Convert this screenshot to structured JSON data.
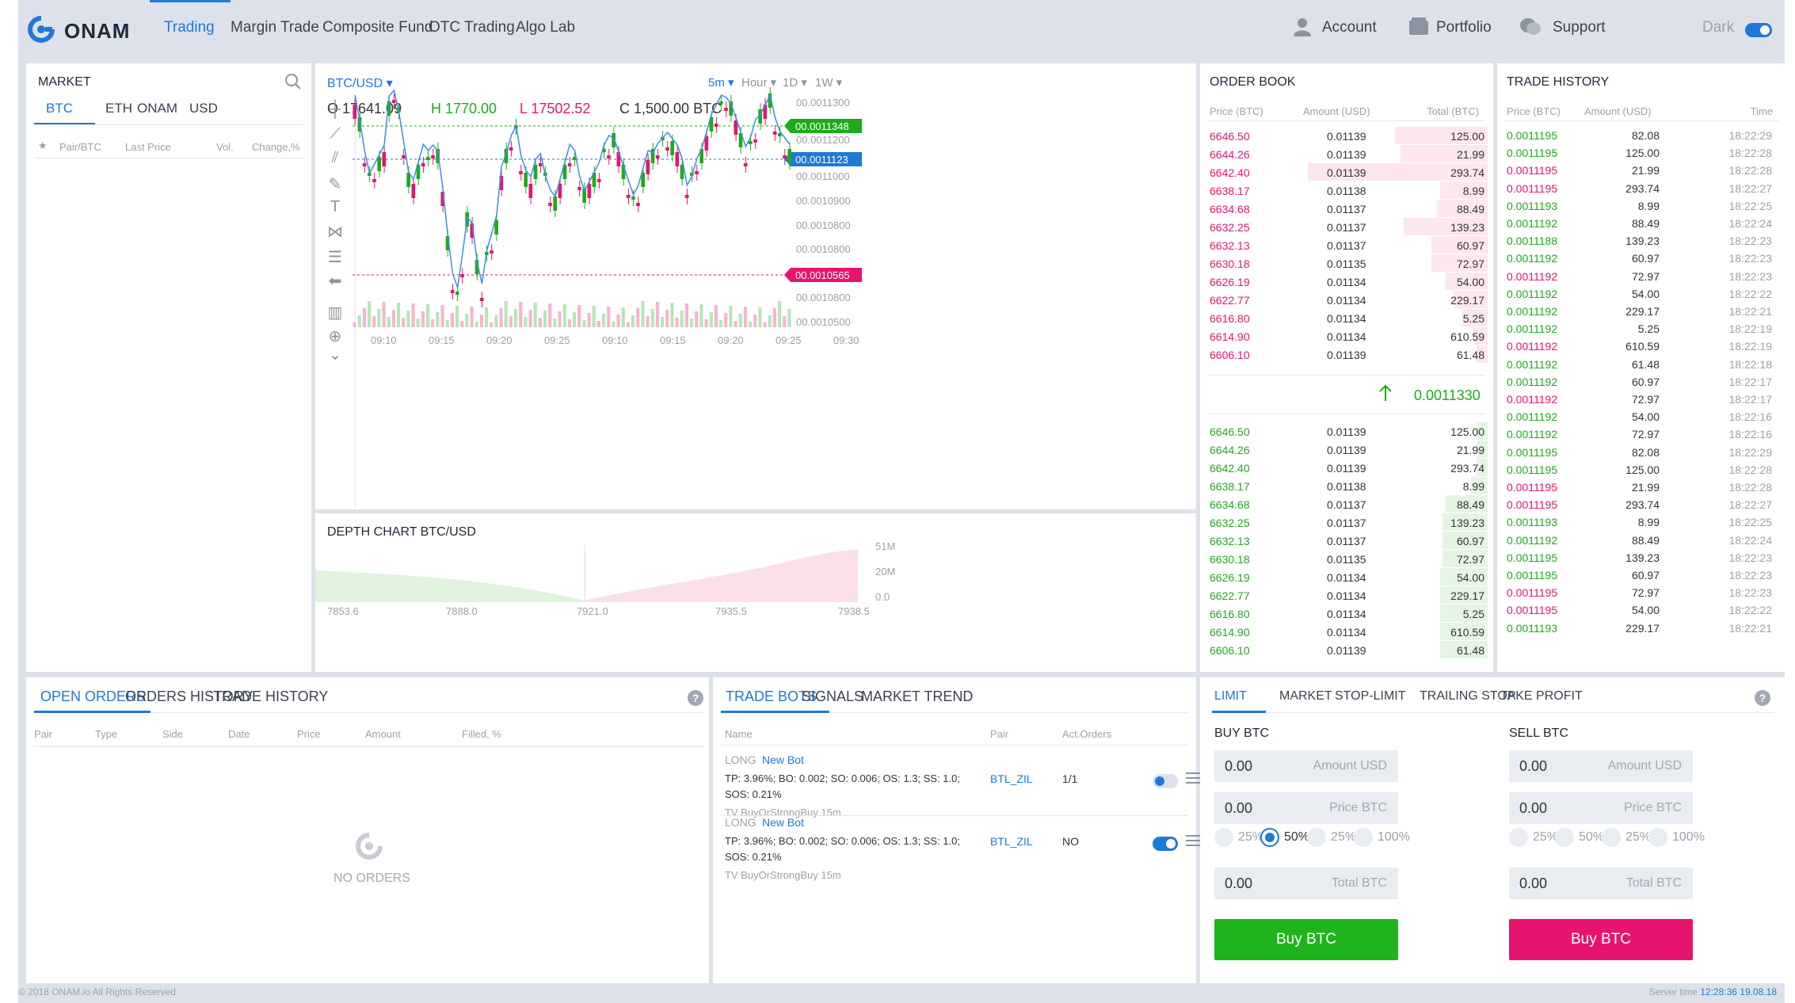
{
  "brand": {
    "name": "ONAM"
  },
  "nav": {
    "items": [
      {
        "label": "Trading",
        "active": true
      },
      {
        "label": "Margin Trade",
        "active": false
      },
      {
        "label": "Composite Fund",
        "active": false
      },
      {
        "label": "OTC Trading",
        "active": false
      },
      {
        "label": "Algo Lab",
        "active": false
      }
    ]
  },
  "header_links": {
    "account": "Account",
    "portfolio": "Portfolio",
    "support": "Support",
    "theme_label": "Dark",
    "theme_on": true
  },
  "market": {
    "title": "MARKET",
    "tabs": [
      "BTC",
      "ETH",
      "ONAM",
      "USD"
    ],
    "active_tab": "BTC",
    "columns": {
      "star": "★",
      "pair": "Pair/BTC",
      "last": "Last Price",
      "vol": "Vol.",
      "change": "Change,%"
    }
  },
  "chart": {
    "pair": "BTC/USD",
    "open": "O 17641.09",
    "high": "H 1770.00",
    "low": "L 17502.52",
    "close": "C 1,500.00 BTC",
    "timeframes": [
      "5m",
      "Hour",
      "1D",
      "1W"
    ],
    "y_ticks": [
      "00.0011300",
      "00.0011200",
      "00.0011000",
      "00.0010900",
      "00.0010800",
      "00.0010800",
      "00.0010800",
      "00.0010500"
    ],
    "x_ticks": [
      "09:10",
      "09:15",
      "09:20",
      "09:25",
      "09:10",
      "09:15",
      "09:20",
      "09:25",
      "09:30"
    ],
    "price_tag_high": "00.0011348",
    "price_tag_mid": "00.0011123",
    "price_tag_low": "00.0010565",
    "colors": {
      "up": "#1faa1a",
      "down": "#e5156e",
      "line": "#3d8fe0",
      "volume_up": "#b7e6b5",
      "volume_down": "#f6b5cf"
    }
  },
  "depth": {
    "title": "DEPTH CHART  BTC/USD",
    "x_ticks": [
      "7853.6",
      "7888.0",
      "7921.0",
      "7935.5",
      "7938.5"
    ],
    "y_ticks": [
      "51M",
      "20M",
      "0.0"
    ]
  },
  "order_book": {
    "title": "ORDER BOOK",
    "columns": {
      "price": "Price (BTC)",
      "amount": "Amount (USD)",
      "total": "Total (BTC)"
    },
    "asks": [
      {
        "price": "6646.50",
        "amount": "0.01139",
        "total": "125.00",
        "depth": 0.33
      },
      {
        "price": "6644.26",
        "amount": "0.01139",
        "total": "21.99",
        "depth": 0.31
      },
      {
        "price": "6642.40",
        "amount": "0.01139",
        "total": "293.74",
        "depth": 0.64
      },
      {
        "price": "6638.17",
        "amount": "0.01138",
        "total": "8.99",
        "depth": 0.17
      },
      {
        "price": "6634.68",
        "amount": "0.01137",
        "total": "88.49",
        "depth": 0.18
      },
      {
        "price": "6632.25",
        "amount": "0.01137",
        "total": "139.23",
        "depth": 0.3
      },
      {
        "price": "6632.13",
        "amount": "0.01137",
        "total": "60.97",
        "depth": 0.2
      },
      {
        "price": "6630.18",
        "amount": "0.01135",
        "total": "72.97",
        "depth": 0.2
      },
      {
        "price": "6626.19",
        "amount": "0.01134",
        "total": "54.00",
        "depth": 0.15
      },
      {
        "price": "6622.77",
        "amount": "0.01134",
        "total": "229.17",
        "depth": 0.12
      },
      {
        "price": "6616.80",
        "amount": "0.01134",
        "total": "5.25",
        "depth": 0.09
      },
      {
        "price": "6614.90",
        "amount": "0.01134",
        "total": "610.59",
        "depth": 0.05
      },
      {
        "price": "6606.10",
        "amount": "0.01139",
        "total": "61.48",
        "depth": 0.04
      }
    ],
    "last_price": "0.0011330",
    "bids": [
      {
        "price": "6646.50",
        "amount": "0.01139",
        "total": "125.00",
        "depth": 0.04
      },
      {
        "price": "6644.26",
        "amount": "0.01139",
        "total": "21.99",
        "depth": 0.04
      },
      {
        "price": "6642.40",
        "amount": "0.01139",
        "total": "293.74",
        "depth": 0.04
      },
      {
        "price": "6638.17",
        "amount": "0.01138",
        "total": "8.99",
        "depth": 0.06
      },
      {
        "price": "6634.68",
        "amount": "0.01137",
        "total": "88.49",
        "depth": 0.15
      },
      {
        "price": "6632.25",
        "amount": "0.01137",
        "total": "139.23",
        "depth": 0.16
      },
      {
        "price": "6632.13",
        "amount": "0.01137",
        "total": "60.97",
        "depth": 0.16
      },
      {
        "price": "6630.18",
        "amount": "0.01135",
        "total": "72.97",
        "depth": 0.16
      },
      {
        "price": "6626.19",
        "amount": "0.01134",
        "total": "54.00",
        "depth": 0.17
      },
      {
        "price": "6622.77",
        "amount": "0.01134",
        "total": "229.17",
        "depth": 0.17
      },
      {
        "price": "6616.80",
        "amount": "0.01134",
        "total": "5.25",
        "depth": 0.17
      },
      {
        "price": "6614.90",
        "amount": "0.01134",
        "total": "610.59",
        "depth": 0.17
      },
      {
        "price": "6606.10",
        "amount": "0.01139",
        "total": "61.48",
        "depth": 0.17
      }
    ]
  },
  "trade_history": {
    "title": "TRADE HISTORY",
    "columns": {
      "price": "Price (BTC)",
      "amount": "Amount (USD)",
      "time": "Time"
    },
    "rows": [
      {
        "price": "0.0011195",
        "amount": "82.08",
        "time": "18:22:29",
        "side": "buy"
      },
      {
        "price": "0.0011195",
        "amount": "125.00",
        "time": "18:22:28",
        "side": "buy"
      },
      {
        "price": "0.0011195",
        "amount": "21.99",
        "time": "18:22:28",
        "side": "sell"
      },
      {
        "price": "0.0011195",
        "amount": "293.74",
        "time": "18:22:27",
        "side": "sell"
      },
      {
        "price": "0.0011193",
        "amount": "8.99",
        "time": "18:22:25",
        "side": "buy"
      },
      {
        "price": "0.0011192",
        "amount": "88.49",
        "time": "18:22:24",
        "side": "buy"
      },
      {
        "price": "0.0011188",
        "amount": "139.23",
        "time": "18:22:23",
        "side": "buy"
      },
      {
        "price": "0.0011192",
        "amount": "60.97",
        "time": "18:22:23",
        "side": "buy"
      },
      {
        "price": "0.0011192",
        "amount": "72.97",
        "time": "18:22:23",
        "side": "sell"
      },
      {
        "price": "0.0011192",
        "amount": "54.00",
        "time": "18:22:22",
        "side": "buy"
      },
      {
        "price": "0.0011192",
        "amount": "229.17",
        "time": "18:22:21",
        "side": "buy"
      },
      {
        "price": "0.0011192",
        "amount": "5.25",
        "time": "18:22:19",
        "side": "buy"
      },
      {
        "price": "0.0011192",
        "amount": "610.59",
        "time": "18:22:19",
        "side": "sell"
      },
      {
        "price": "0.0011192",
        "amount": "61.48",
        "time": "18:22:18",
        "side": "buy"
      },
      {
        "price": "0.0011192",
        "amount": "60.97",
        "time": "18:22:17",
        "side": "buy"
      },
      {
        "price": "0.0011192",
        "amount": "72.97",
        "time": "18:22:17",
        "side": "sell"
      },
      {
        "price": "0.0011192",
        "amount": "54.00",
        "time": "18:22:16",
        "side": "buy"
      },
      {
        "price": "0.0011192",
        "amount": "72.97",
        "time": "18:22:16",
        "side": "buy"
      },
      {
        "price": "0.0011195",
        "amount": "82.08",
        "time": "18:22:29",
        "side": "buy"
      },
      {
        "price": "0.0011195",
        "amount": "125.00",
        "time": "18:22:28",
        "side": "buy"
      },
      {
        "price": "0.0011195",
        "amount": "21.99",
        "time": "18:22:28",
        "side": "sell"
      },
      {
        "price": "0.0011195",
        "amount": "293.74",
        "time": "18:22:27",
        "side": "sell"
      },
      {
        "price": "0.0011193",
        "amount": "8.99",
        "time": "18:22:25",
        "side": "buy"
      },
      {
        "price": "0.0011192",
        "amount": "88.49",
        "time": "18:22:24",
        "side": "buy"
      },
      {
        "price": "0.0011195",
        "amount": "139.23",
        "time": "18:22:23",
        "side": "buy"
      },
      {
        "price": "0.0011195",
        "amount": "60.97",
        "time": "18:22:23",
        "side": "buy"
      },
      {
        "price": "0.0011195",
        "amount": "72.97",
        "time": "18:22:23",
        "side": "sell"
      },
      {
        "price": "0.0011195",
        "amount": "54.00",
        "time": "18:22:22",
        "side": "sell"
      },
      {
        "price": "0.0011193",
        "amount": "229.17",
        "time": "18:22:21",
        "side": "buy"
      }
    ]
  },
  "orders": {
    "tabs": [
      "OPEN ORDERS",
      "ORDERS HISTORY",
      "TRADE HISTORY"
    ],
    "columns": [
      "Pair",
      "Type",
      "Side",
      "Date",
      "Price",
      "Amount",
      "Filled, %"
    ],
    "empty_text": "NO ORDERS"
  },
  "bots": {
    "tabs": [
      "TRADE BOTS",
      "SIGNALS",
      "MARKET TREND"
    ],
    "columns": {
      "name": "Name",
      "pair": "Pair",
      "act": "Act.Orders"
    },
    "items": [
      {
        "side": "LONG",
        "link": "New Bot",
        "params": "TP: 3.96%; BO: 0.002; SO: 0.006; OS: 1.3; SS: 1.0;",
        "params2": "SOS: 0.21%",
        "strategy": "TV BuyOrStrongBuy 15m",
        "pair": "BTL_ZIL",
        "act": "1/1",
        "enabled": false
      },
      {
        "side": "LONG",
        "link": "New Bot",
        "params": "TP: 3.96%; BO: 0.002; SO: 0.006; OS: 1.3; SS: 1.0;",
        "params2": "SOS: 0.21%",
        "strategy": "TV BuyOrStrongBuy 15m",
        "pair": "BTL_ZIL",
        "act": "NO",
        "enabled": true
      }
    ]
  },
  "trade_form": {
    "tabs": [
      "LIMIT",
      "MARKET",
      "STOP-LIMIT",
      "TRAILING STOP",
      "TAKE PROFIT"
    ],
    "buy": {
      "title": "BUY BTC",
      "amount": "0.00",
      "amount_ph": "Amount USD",
      "price": "0.00",
      "price_ph": "Price BTC",
      "total": "0.00",
      "total_ph": "Total BTC",
      "percents": [
        "25%",
        "50%",
        "25%",
        "100%"
      ],
      "selected": 1,
      "button": "Buy BTC"
    },
    "sell": {
      "title": "SELL BTC",
      "amount": "0.00",
      "amount_ph": "Amount USD",
      "price": "0.00",
      "price_ph": "Price BTC",
      "total": "0.00",
      "total_ph": "Total BTC",
      "percents": [
        "25%",
        "50%",
        "25%",
        "100%"
      ],
      "selected": -1,
      "button": "Buy BTC"
    }
  },
  "footer": {
    "copyright": "© 2018 ONAM.io All Rights Reserved",
    "server_label": "Server time",
    "server_time": "12:28:36 19.08.18"
  }
}
